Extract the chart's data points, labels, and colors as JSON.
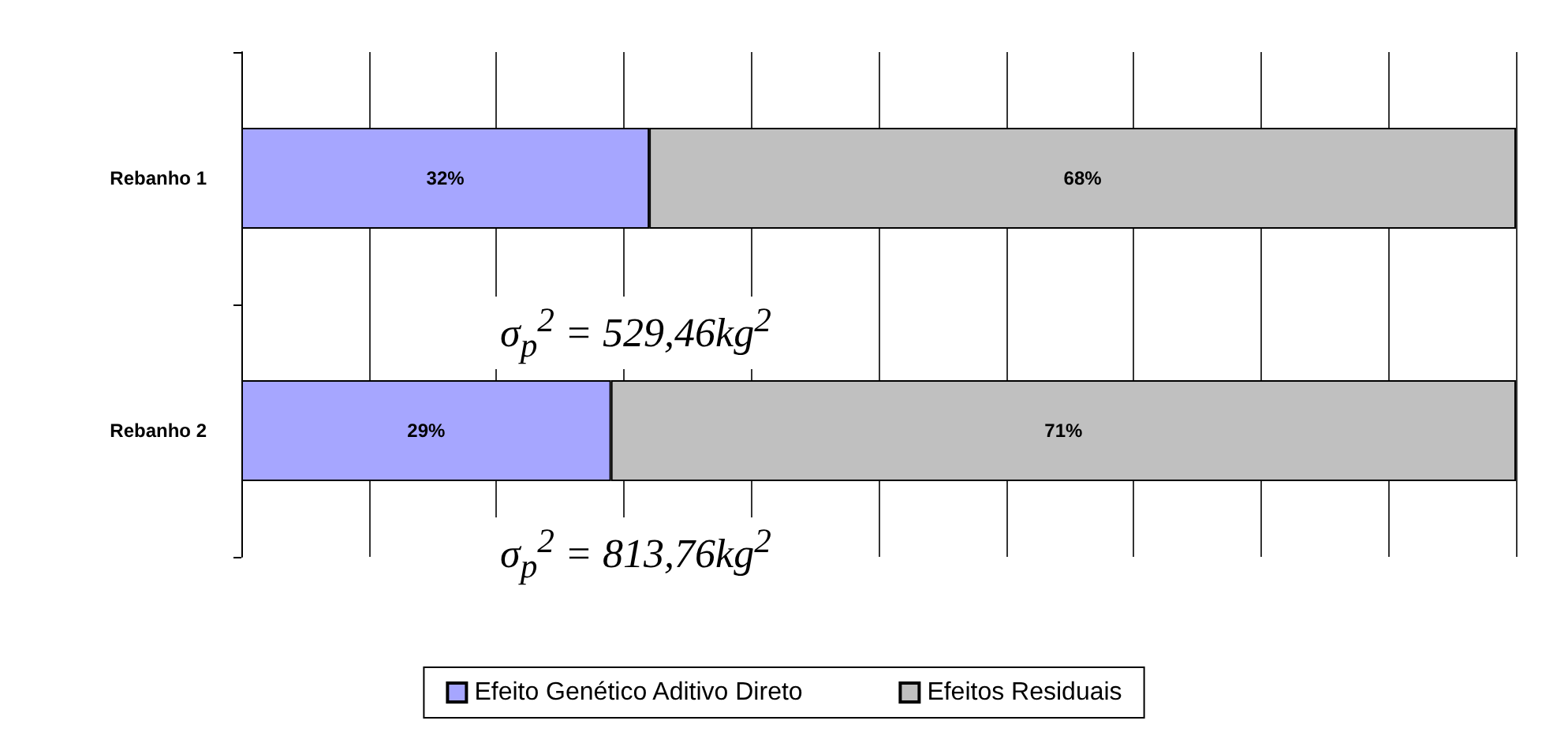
{
  "chart_data": {
    "type": "bar",
    "orientation": "horizontal",
    "stacked": true,
    "categories": [
      "Rebanho 1",
      "Rebanho 2"
    ],
    "series": [
      {
        "name": "Efeito Genético Aditivo Direto",
        "color": "#a6a6ff",
        "values": [
          32,
          29
        ],
        "value_labels": [
          "32%",
          "29%"
        ]
      },
      {
        "name": "Efeitos Residuais",
        "color": "#c0c0c0",
        "values": [
          68,
          71
        ],
        "value_labels": [
          "68%",
          "71%"
        ]
      }
    ],
    "xlim": [
      0,
      100
    ],
    "xticks": [
      {
        "value": 0,
        "label": null
      },
      {
        "value": 10,
        "label": null
      },
      {
        "value": 20,
        "label": null
      },
      {
        "value": 30,
        "label": null
      },
      {
        "value": 40,
        "label": null
      },
      {
        "value": 50,
        "label": null
      },
      {
        "value": 60,
        "label": null
      },
      {
        "value": 70,
        "label": null
      },
      {
        "value": 80,
        "label": null
      },
      {
        "value": 90,
        "label": null
      },
      {
        "value": 100,
        "label": null
      }
    ],
    "tick_labels": "y",
    "grid": "x",
    "legend": "bottom",
    "annotations": [
      "σ$_{p}$$^{2}$ = 529,46kg$^{2}$",
      "σ$_{p}$$^{2}$ = 813,76kg$^{2}$"
    ]
  }
}
